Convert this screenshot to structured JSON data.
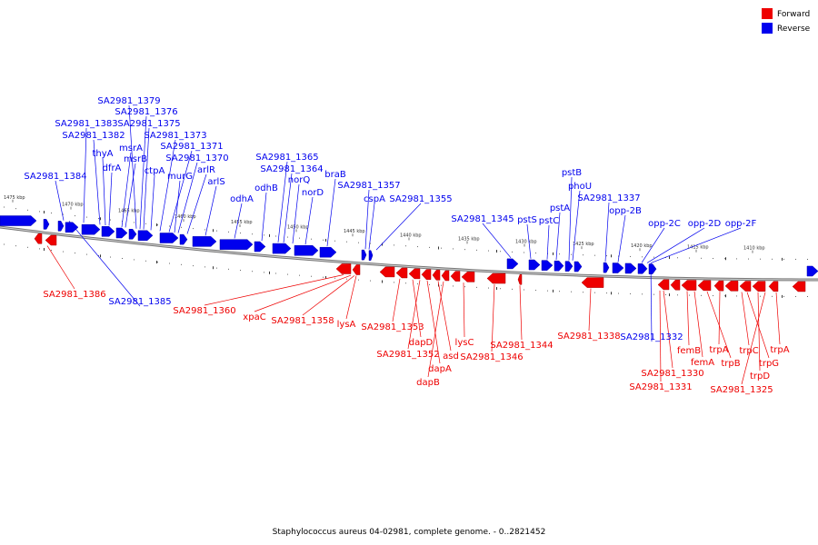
{
  "caption": "Staphylococcus aureus 04-02981, complete genome. - 0..2821452",
  "legend": [
    {
      "label": "Forward",
      "color": "#ee0000"
    },
    {
      "label": "Reverse",
      "color": "#0000ee"
    }
  ],
  "colors": {
    "forward": "#ee0000",
    "reverse": "#0000ee",
    "backbone": "#888888"
  },
  "ticks": [
    "1475 kbp",
    "1470 kbp",
    "1465 kbp",
    "1460 kbp",
    "1455 kbp",
    "1450 kbp",
    "1445 kbp",
    "1440 kbp",
    "1435 kbp",
    "1430 kbp",
    "1425 kbp",
    "1420 kbp",
    "1415 kbp",
    "1410 kbp"
  ],
  "reverse_labels": [
    "SA2981_1379",
    "SA2981_1376",
    "SA2981_1383",
    "SA2981_1375",
    "SA2981_1382",
    "SA2981_1373",
    "thyA",
    "msrA",
    "SA2981_1371",
    "msrB",
    "SA2981_1370",
    "dfrA",
    "ctpA",
    "arlR",
    "SA2981_1384",
    "murG",
    "arlS",
    "SA2981_1365",
    "SA2981_1364",
    "braB",
    "odhA",
    "odhB",
    "norQ",
    "norD",
    "SA2981_1357",
    "cspA",
    "SA2981_1355",
    "pstB",
    "phoU",
    "pstA",
    "SA2981_1337",
    "pstS",
    "pstC",
    "SA2981_1345",
    "opp-2B",
    "opp-2C",
    "opp-2D",
    "opp-2F",
    "SA2981_1385",
    "SA2981_1332"
  ],
  "forward_labels": [
    "SA2981_1386",
    "SA2981_1360",
    "xpaC",
    "SA2981_1358",
    "lysA",
    "SA2981_1353",
    "dapD",
    "SA2981_1352",
    "asd",
    "dapA",
    "dapB",
    "lysC",
    "SA2981_1346",
    "SA2981_1344",
    "SA2981_1338",
    "femB",
    "femA",
    "trpA",
    "trpB",
    "trpC",
    "trpG",
    "trpD",
    "SA2981_1330",
    "SA2981_1331",
    "SA2981_1325",
    "trpA"
  ]
}
